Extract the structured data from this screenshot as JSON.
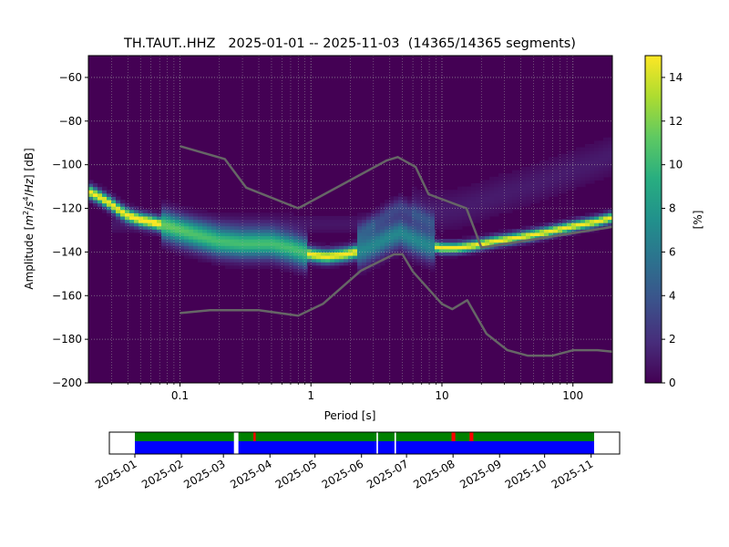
{
  "chart_data": {
    "type": "heatmap",
    "title": "TH.TAUT..HHZ   2025-01-01 -- 2025-11-03  (14365/14365 segments)",
    "xlabel": "Period [s]",
    "ylabel_parts": [
      "Amplitude [",
      "m",
      "2",
      "/",
      "s",
      "4",
      "/",
      "Hz",
      "] [dB]"
    ],
    "x_scale": "log",
    "xlim": [
      0.02,
      200
    ],
    "ylim": [
      -200,
      -50
    ],
    "x_ticks": [
      {
        "value": 0.1,
        "label": "0.1"
      },
      {
        "value": 1,
        "label": "1"
      },
      {
        "value": 10,
        "label": "10"
      },
      {
        "value": 100,
        "label": "100"
      }
    ],
    "y_ticks": [
      {
        "value": -60,
        "label": "−60"
      },
      {
        "value": -80,
        "label": "−80"
      },
      {
        "value": -100,
        "label": "−100"
      },
      {
        "value": -120,
        "label": "−120"
      },
      {
        "value": -140,
        "label": "−140"
      },
      {
        "value": -160,
        "label": "−160"
      },
      {
        "value": -180,
        "label": "−180"
      },
      {
        "value": -200,
        "label": "−200"
      }
    ],
    "grid": true,
    "colormap": "viridis",
    "colorbar": {
      "label": "[%]",
      "range": [
        0,
        15
      ],
      "ticks": [
        {
          "value": 0,
          "label": "0"
        },
        {
          "value": 2,
          "label": "2"
        },
        {
          "value": 4,
          "label": "4"
        },
        {
          "value": 6,
          "label": "6"
        },
        {
          "value": 8,
          "label": "8"
        },
        {
          "value": 10,
          "label": "10"
        },
        {
          "value": 12,
          "label": "12"
        },
        {
          "value": 14,
          "label": "14"
        }
      ]
    },
    "psd_mode": [
      [
        0.02,
        -112
      ],
      [
        0.025,
        -115
      ],
      [
        0.03,
        -118
      ],
      [
        0.035,
        -121
      ],
      [
        0.04,
        -123
      ],
      [
        0.05,
        -125
      ],
      [
        0.06,
        -126
      ],
      [
        0.08,
        -128
      ],
      [
        0.1,
        -130
      ],
      [
        0.13,
        -132
      ],
      [
        0.2,
        -135
      ],
      [
        0.3,
        -136
      ],
      [
        0.5,
        -136
      ],
      [
        0.7,
        -138
      ],
      [
        1.0,
        -141
      ],
      [
        1.3,
        -142
      ],
      [
        1.8,
        -141
      ],
      [
        2.5,
        -139
      ],
      [
        3.2,
        -136
      ],
      [
        4.0,
        -133
      ],
      [
        4.8,
        -131
      ],
      [
        6.0,
        -134
      ],
      [
        8.0,
        -137
      ],
      [
        10,
        -138
      ],
      [
        13,
        -138
      ],
      [
        17,
        -137
      ],
      [
        25,
        -135
      ],
      [
        40,
        -133
      ],
      [
        60,
        -131
      ],
      [
        100,
        -128
      ],
      [
        150,
        -126
      ],
      [
        200,
        -124
      ]
    ],
    "noise_models": [
      {
        "name": "NHNM",
        "points": [
          [
            0.1,
            -91.5
          ],
          [
            0.22,
            -97.4
          ],
          [
            0.32,
            -110.5
          ],
          [
            0.8,
            -120
          ],
          [
            3.8,
            -98
          ],
          [
            4.6,
            -96.5
          ],
          [
            6.3,
            -101
          ],
          [
            7.9,
            -113.5
          ],
          [
            15.4,
            -120
          ],
          [
            20,
            -138
          ],
          [
            200,
            -128.5
          ]
        ]
      },
      {
        "name": "NLNM",
        "points": [
          [
            0.1,
            -168
          ],
          [
            0.17,
            -166.7
          ],
          [
            0.4,
            -166.7
          ],
          [
            0.8,
            -169.2
          ],
          [
            1.24,
            -163.7
          ],
          [
            2.4,
            -148.6
          ],
          [
            4.3,
            -141.1
          ],
          [
            5.0,
            -141.1
          ],
          [
            6.0,
            -149
          ],
          [
            10,
            -163.8
          ],
          [
            12,
            -166.2
          ],
          [
            15.6,
            -162.1
          ],
          [
            21.9,
            -177.5
          ],
          [
            31.6,
            -185
          ],
          [
            45,
            -187.5
          ],
          [
            70,
            -187.5
          ],
          [
            101,
            -185
          ],
          [
            154,
            -185
          ],
          [
            200,
            -185.7
          ]
        ]
      }
    ],
    "timeline": {
      "ticks": [
        "2025-01",
        "2025-02",
        "2025-03",
        "2025-04",
        "2025-05",
        "2025-06",
        "2025-07",
        "2025-08",
        "2025-09",
        "2025-10",
        "2025-11"
      ],
      "range": [
        "2024-12-15",
        "2025-11-20"
      ],
      "coverage_start": "2025-01-01",
      "coverage_end": "2025-11-03",
      "gaps": [
        [
          "2025-03-08",
          "2025-03-11"
        ],
        [
          "2025-06-11",
          "2025-06-12"
        ],
        [
          "2025-06-23",
          "2025-06-24"
        ]
      ],
      "flags": [
        "2025-03-21",
        "2025-07-31",
        "2025-08-01",
        "2025-08-12",
        "2025-08-13"
      ],
      "colors": {
        "available": "#008000",
        "used": "#0000ff",
        "flag": "#ff0000"
      }
    }
  }
}
